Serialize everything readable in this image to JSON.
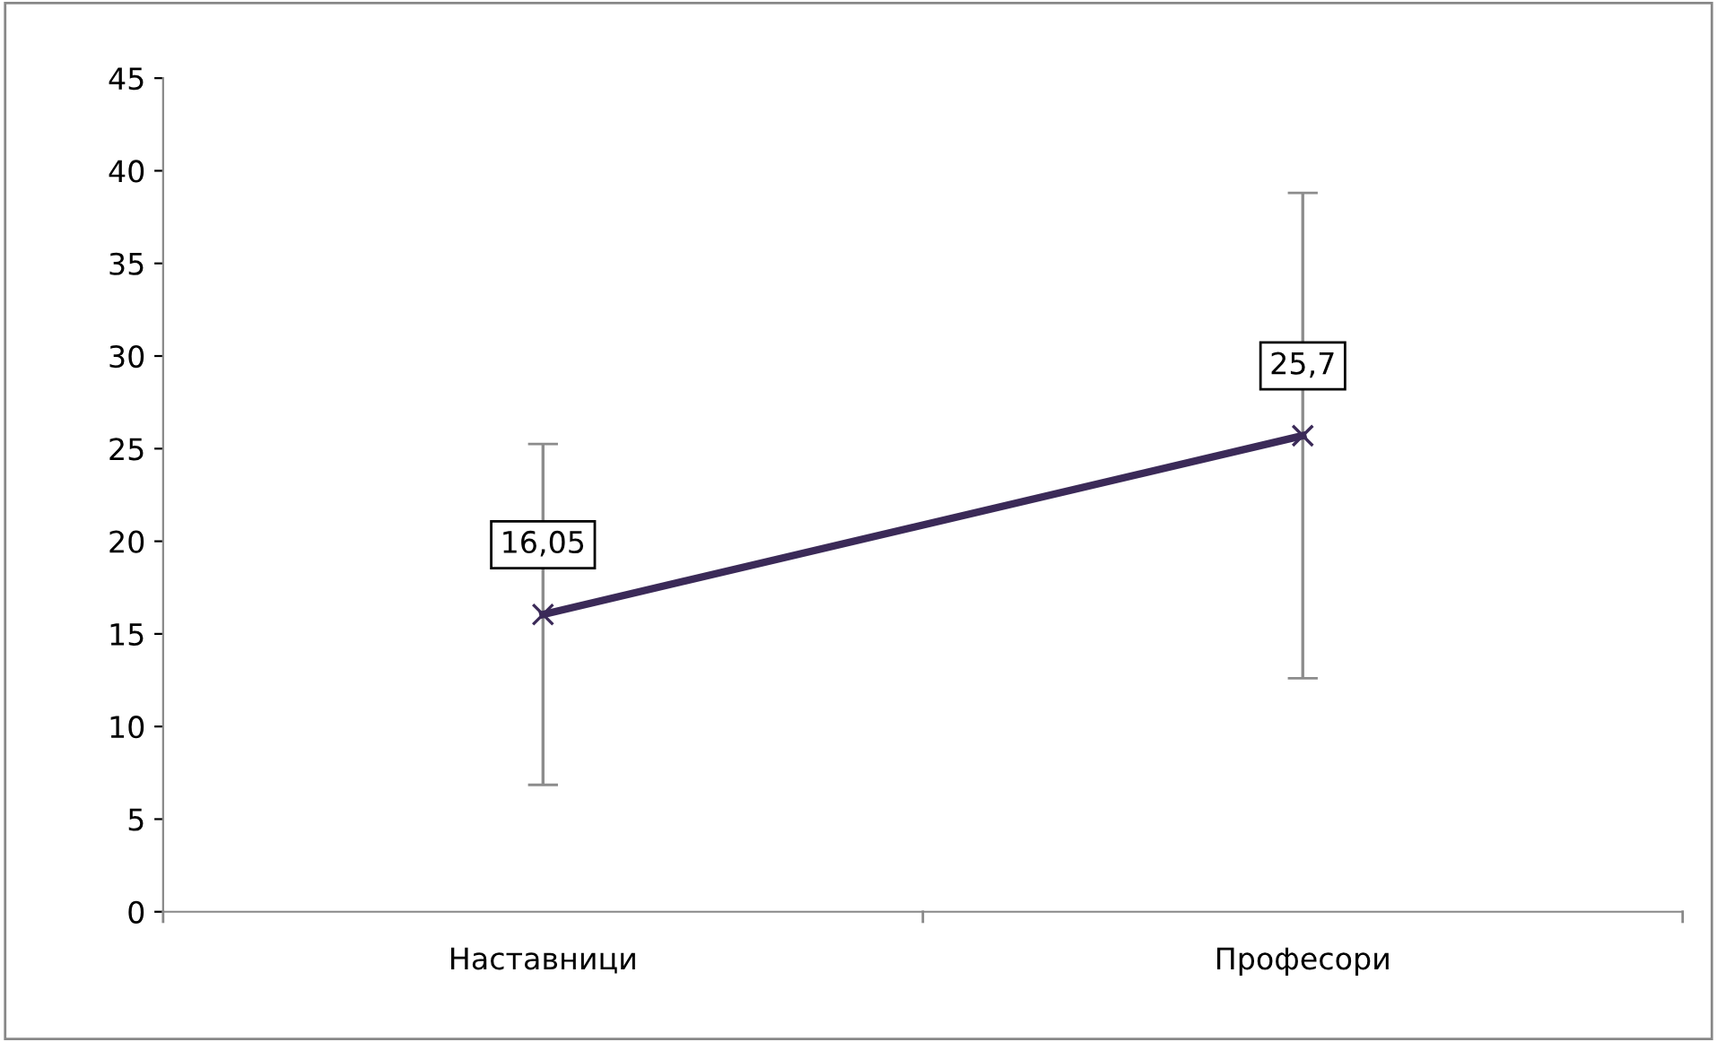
{
  "chart_data": {
    "type": "line",
    "categories": [
      "Наставници",
      "Професори"
    ],
    "series": [
      {
        "color": "#3b2a58",
        "values": [
          16.05,
          25.7
        ],
        "errors": [
          9.2,
          13.1
        ],
        "value_labels": [
          "16,05",
          "25,7"
        ]
      }
    ],
    "ylim": [
      0,
      45
    ],
    "yticks": [
      0,
      5,
      10,
      15,
      20,
      25,
      30,
      35,
      40,
      45
    ],
    "marker": "cross",
    "line_style": "solid",
    "grid": false,
    "legend": false
  }
}
